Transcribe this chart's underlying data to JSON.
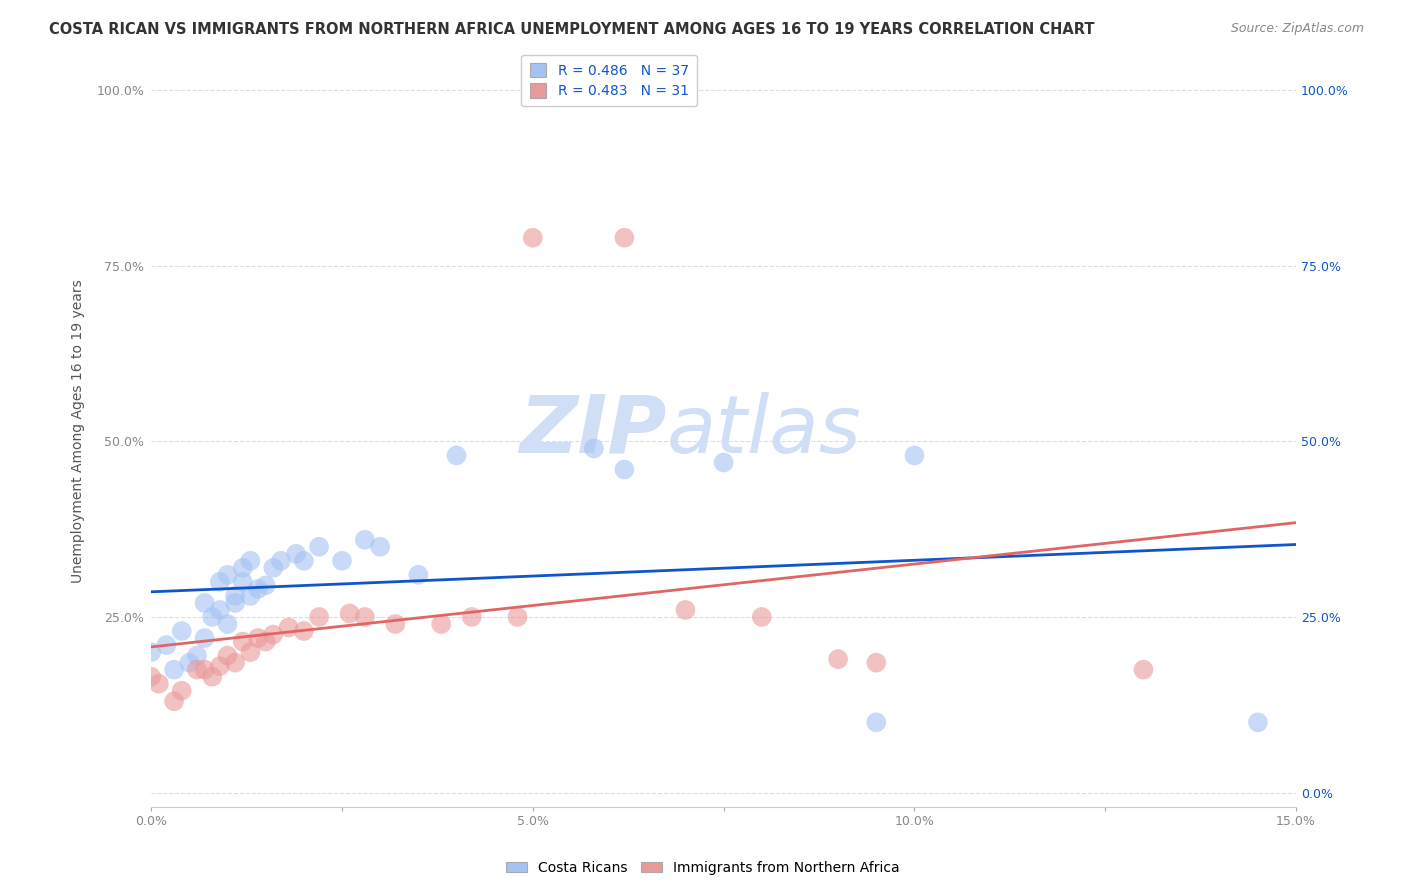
{
  "title": "COSTA RICAN VS IMMIGRANTS FROM NORTHERN AFRICA UNEMPLOYMENT AMONG AGES 16 TO 19 YEARS CORRELATION CHART",
  "source": "Source: ZipAtlas.com",
  "ylabel": "Unemployment Among Ages 16 to 19 years",
  "xlim": [
    0.0,
    0.15
  ],
  "ylim": [
    -0.02,
    1.05
  ],
  "yticks": [
    0.0,
    0.25,
    0.5,
    0.75,
    1.0
  ],
  "ytick_labels_left": [
    "",
    "25.0%",
    "50.0%",
    "75.0%",
    "100.0%"
  ],
  "ytick_labels_right": [
    "0.0%",
    "25.0%",
    "50.0%",
    "75.0%",
    "100.0%"
  ],
  "xticks": [
    0.0,
    0.025,
    0.05,
    0.075,
    0.1,
    0.125,
    0.15
  ],
  "xtick_labels": [
    "0.0%",
    "",
    "5.0%",
    "",
    "10.0%",
    "",
    "15.0%"
  ],
  "blue_R": 0.486,
  "blue_N": 37,
  "pink_R": 0.483,
  "pink_N": 31,
  "blue_color": "#a4c2f4",
  "pink_color": "#ea9999",
  "blue_line_color": "#1155cc",
  "pink_line_color": "#e06666",
  "background_color": "#ffffff",
  "grid_color": "#dddddd",
  "watermark_color": "#d0dff5",
  "blue_scatter_x": [
    0.0,
    0.002,
    0.003,
    0.004,
    0.005,
    0.006,
    0.007,
    0.007,
    0.008,
    0.009,
    0.009,
    0.01,
    0.01,
    0.011,
    0.011,
    0.012,
    0.012,
    0.013,
    0.013,
    0.014,
    0.015,
    0.016,
    0.017,
    0.019,
    0.02,
    0.022,
    0.025,
    0.028,
    0.03,
    0.035,
    0.04,
    0.058,
    0.062,
    0.075,
    0.095,
    0.1,
    0.145
  ],
  "blue_scatter_y": [
    0.2,
    0.21,
    0.175,
    0.23,
    0.185,
    0.195,
    0.22,
    0.27,
    0.25,
    0.26,
    0.3,
    0.24,
    0.31,
    0.27,
    0.28,
    0.3,
    0.32,
    0.28,
    0.33,
    0.29,
    0.295,
    0.32,
    0.33,
    0.34,
    0.33,
    0.35,
    0.33,
    0.36,
    0.35,
    0.31,
    0.48,
    0.49,
    0.46,
    0.47,
    0.1,
    0.48,
    0.1
  ],
  "pink_scatter_x": [
    0.0,
    0.001,
    0.003,
    0.004,
    0.006,
    0.007,
    0.008,
    0.009,
    0.01,
    0.011,
    0.012,
    0.013,
    0.014,
    0.015,
    0.016,
    0.018,
    0.02,
    0.022,
    0.026,
    0.028,
    0.032,
    0.038,
    0.042,
    0.048,
    0.05,
    0.062,
    0.07,
    0.08,
    0.09,
    0.095,
    0.13
  ],
  "pink_scatter_y": [
    0.165,
    0.155,
    0.13,
    0.145,
    0.175,
    0.175,
    0.165,
    0.18,
    0.195,
    0.185,
    0.215,
    0.2,
    0.22,
    0.215,
    0.225,
    0.235,
    0.23,
    0.25,
    0.255,
    0.25,
    0.24,
    0.24,
    0.25,
    0.25,
    0.79,
    0.79,
    0.26,
    0.25,
    0.19,
    0.185,
    0.175
  ],
  "legend_blue_label": "Costa Ricans",
  "legend_pink_label": "Immigrants from Northern Africa",
  "title_fontsize": 10.5,
  "axis_label_fontsize": 10,
  "tick_fontsize": 9,
  "legend_fontsize": 10
}
